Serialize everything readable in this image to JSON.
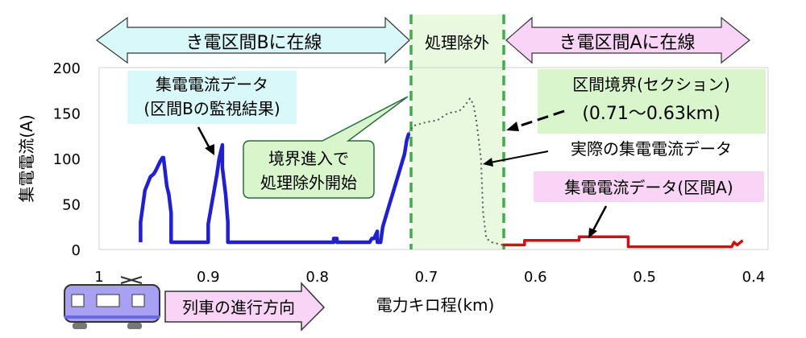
{
  "chart_data": {
    "type": "line",
    "ylabel": "集電電流(A)",
    "xlabel": "電力キロ程(km)",
    "xlim": [
      1.0,
      0.4
    ],
    "ylim": [
      0,
      200
    ],
    "x_ticks": [
      "1",
      "0.9",
      "0.8",
      "0.7",
      "0.6",
      "0.5",
      "0.4"
    ],
    "y_ticks": [
      "0",
      "50",
      "100",
      "150",
      "200"
    ],
    "grid": false,
    "series": [
      {
        "name": "集電電流データ(区間B)",
        "color": "#2020d0",
        "points": [
          [
            0.962,
            8
          ],
          [
            0.962,
            30
          ],
          [
            0.958,
            65
          ],
          [
            0.953,
            80
          ],
          [
            0.95,
            83
          ],
          [
            0.948,
            87
          ],
          [
            0.944,
            97
          ],
          [
            0.942,
            101
          ],
          [
            0.941,
            101
          ],
          [
            0.938,
            70
          ],
          [
            0.936,
            60
          ],
          [
            0.934,
            40
          ],
          [
            0.934,
            8
          ],
          [
            0.9,
            8
          ],
          [
            0.9,
            28
          ],
          [
            0.895,
            62
          ],
          [
            0.892,
            83
          ],
          [
            0.89,
            100
          ],
          [
            0.887,
            115
          ],
          [
            0.887,
            90
          ],
          [
            0.884,
            60
          ],
          [
            0.882,
            30
          ],
          [
            0.882,
            8
          ],
          [
            0.785,
            8
          ],
          [
            0.785,
            12
          ],
          [
            0.782,
            12
          ],
          [
            0.782,
            8
          ],
          [
            0.752,
            8
          ],
          [
            0.75,
            12
          ],
          [
            0.748,
            12
          ],
          [
            0.745,
            20
          ],
          [
            0.745,
            8
          ],
          [
            0.742,
            8
          ],
          [
            0.74,
            25
          ],
          [
            0.735,
            45
          ],
          [
            0.73,
            65
          ],
          [
            0.725,
            85
          ],
          [
            0.72,
            105
          ],
          [
            0.718,
            120
          ],
          [
            0.716,
            128
          ]
        ]
      },
      {
        "name": "実際の集電電流データ",
        "color": "#555555",
        "points": [
          [
            0.716,
            128
          ],
          [
            0.712,
            136
          ],
          [
            0.7,
            140
          ],
          [
            0.69,
            142
          ],
          [
            0.68,
            150
          ],
          [
            0.67,
            152
          ],
          [
            0.665,
            158
          ],
          [
            0.66,
            166
          ],
          [
            0.657,
            160
          ],
          [
            0.654,
            140
          ],
          [
            0.65,
            100
          ],
          [
            0.648,
            40
          ],
          [
            0.645,
            12
          ],
          [
            0.64,
            8
          ],
          [
            0.63,
            5
          ]
        ]
      },
      {
        "name": "集電電流データ(区間A)",
        "color": "#d01010",
        "points": [
          [
            0.63,
            5
          ],
          [
            0.61,
            5
          ],
          [
            0.61,
            10
          ],
          [
            0.56,
            10
          ],
          [
            0.56,
            14
          ],
          [
            0.515,
            14
          ],
          [
            0.515,
            3
          ],
          [
            0.42,
            3
          ],
          [
            0.418,
            8
          ],
          [
            0.415,
            5
          ],
          [
            0.41,
            10
          ]
        ]
      }
    ],
    "section_boundary_km": [
      0.71,
      0.63
    ]
  },
  "header": {
    "left_arrow_label": "き電区間Bに在線",
    "middle_label": "処理除外",
    "right_arrow_label": "き電区間Aに在線"
  },
  "callouts": {
    "b_line1": "集電電流データ",
    "b_line2": "(区間Bの監視結果)",
    "entry_line1": "境界進入で",
    "entry_line2": "処理除外開始",
    "boundary_line1": "区間境界(セクション)",
    "boundary_line2": "(0.71〜0.63km)",
    "actual": "実際の集電電流データ",
    "a_label": "集電電流データ(区間A)"
  },
  "train": {
    "direction_label": "列車の進行方向"
  },
  "colors": {
    "cyan_fill": "#d8f8fa",
    "pink_fill": "#fad4f6",
    "green_fill": "#d8f5cc",
    "section_line": "#3fad4a",
    "train_body": "#a8a0f0"
  }
}
